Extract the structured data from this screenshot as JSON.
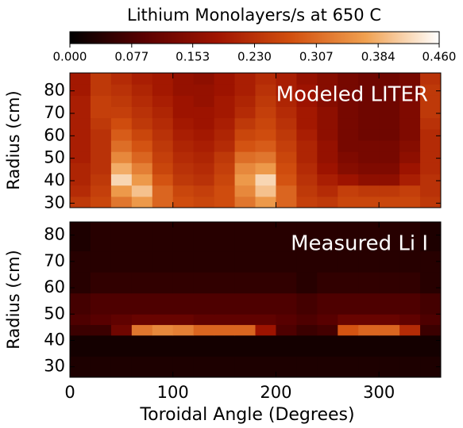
{
  "chart_data": [
    {
      "type": "heatmap",
      "title": "Lithium Monolayers/s at 650 C",
      "annotation": "Modeled LITER",
      "ylabel": "Radius (cm)",
      "colorbar": {
        "lim": [
          0,
          0.46
        ],
        "ticks": [
          {
            "value": 0,
            "label": "0.000"
          },
          0.077,
          0.153,
          {
            "value": 0.23,
            "label": "0.230"
          },
          0.307,
          0.384,
          {
            "value": 0.46,
            "label": "0.460"
          }
        ],
        "colors": [
          "#000000",
          "#5a0000",
          "#a01400",
          "#d2500f",
          "#f0a050",
          "#ffffff"
        ]
      },
      "xlim": [
        0,
        360
      ],
      "xbins": [
        0,
        20,
        40,
        60,
        80,
        100,
        120,
        140,
        160,
        180,
        200,
        220,
        240,
        260,
        280,
        300,
        320,
        340,
        360
      ],
      "ylim": [
        28,
        88
      ],
      "ybins": [
        28,
        33,
        38,
        43,
        48,
        53,
        58,
        63,
        68,
        73,
        78,
        83,
        88
      ],
      "yticks": [
        30,
        40,
        50,
        60,
        70,
        80
      ],
      "z": [
        [
          0.24,
          0.26,
          0.32,
          0.36,
          0.3,
          0.27,
          0.26,
          0.27,
          0.32,
          0.36,
          0.3,
          0.25,
          0.24,
          0.26,
          0.26,
          0.26,
          0.26,
          0.24
        ],
        [
          0.22,
          0.25,
          0.36,
          0.4,
          0.3,
          0.26,
          0.25,
          0.27,
          0.34,
          0.4,
          0.3,
          0.24,
          0.22,
          0.25,
          0.24,
          0.24,
          0.25,
          0.23
        ],
        [
          0.21,
          0.24,
          0.42,
          0.36,
          0.28,
          0.24,
          0.23,
          0.26,
          0.36,
          0.42,
          0.28,
          0.23,
          0.2,
          0.18,
          0.16,
          0.16,
          0.2,
          0.23
        ],
        [
          0.21,
          0.23,
          0.38,
          0.33,
          0.26,
          0.23,
          0.22,
          0.25,
          0.34,
          0.36,
          0.27,
          0.22,
          0.18,
          0.15,
          0.14,
          0.14,
          0.18,
          0.22
        ],
        [
          0.2,
          0.23,
          0.34,
          0.3,
          0.25,
          0.22,
          0.21,
          0.24,
          0.31,
          0.32,
          0.26,
          0.21,
          0.17,
          0.14,
          0.13,
          0.13,
          0.16,
          0.22
        ],
        [
          0.2,
          0.23,
          0.31,
          0.28,
          0.24,
          0.21,
          0.2,
          0.22,
          0.28,
          0.29,
          0.25,
          0.21,
          0.17,
          0.13,
          0.13,
          0.13,
          0.15,
          0.22
        ],
        [
          0.2,
          0.23,
          0.29,
          0.26,
          0.23,
          0.2,
          0.19,
          0.21,
          0.26,
          0.27,
          0.24,
          0.2,
          0.16,
          0.13,
          0.12,
          0.12,
          0.14,
          0.22
        ],
        [
          0.2,
          0.24,
          0.27,
          0.24,
          0.22,
          0.19,
          0.18,
          0.2,
          0.24,
          0.26,
          0.23,
          0.19,
          0.16,
          0.13,
          0.12,
          0.12,
          0.14,
          0.23
        ],
        [
          0.2,
          0.25,
          0.25,
          0.23,
          0.21,
          0.18,
          0.18,
          0.19,
          0.22,
          0.25,
          0.22,
          0.19,
          0.16,
          0.13,
          0.12,
          0.12,
          0.14,
          0.24
        ],
        [
          0.2,
          0.25,
          0.24,
          0.22,
          0.2,
          0.18,
          0.17,
          0.19,
          0.21,
          0.24,
          0.21,
          0.18,
          0.15,
          0.13,
          0.12,
          0.12,
          0.14,
          0.24
        ],
        [
          0.19,
          0.24,
          0.23,
          0.21,
          0.19,
          0.17,
          0.17,
          0.18,
          0.2,
          0.23,
          0.2,
          0.18,
          0.15,
          0.13,
          0.12,
          0.12,
          0.13,
          0.24
        ],
        [
          0.19,
          0.24,
          0.22,
          0.2,
          0.19,
          0.17,
          0.16,
          0.18,
          0.2,
          0.22,
          0.2,
          0.17,
          0.15,
          0.13,
          0.12,
          0.12,
          0.13,
          0.23
        ]
      ]
    },
    {
      "type": "heatmap",
      "annotation": "Measured Li I",
      "ylabel": "Radius (cm)",
      "xlabel": "Toroidal Angle (Degrees)",
      "xlim": [
        0,
        360
      ],
      "xticks": [
        0,
        100,
        200,
        300
      ],
      "xbins": [
        0,
        20,
        40,
        60,
        80,
        100,
        120,
        140,
        160,
        180,
        200,
        220,
        240,
        260,
        280,
        300,
        320,
        340,
        360
      ],
      "ylim": [
        26,
        85
      ],
      "ybins": [
        26,
        34,
        42,
        46,
        50,
        58,
        66,
        74,
        85
      ],
      "yticks": [
        30,
        40,
        50,
        60,
        70,
        80
      ],
      "z": [
        [
          0.03,
          0.03,
          0.03,
          0.03,
          0.03,
          0.03,
          0.03,
          0.03,
          0.03,
          0.03,
          0.03,
          0.03,
          0.03,
          0.03,
          0.03,
          0.03,
          0.03,
          0.03
        ],
        [
          0.02,
          0.02,
          0.02,
          0.02,
          0.02,
          0.02,
          0.02,
          0.02,
          0.02,
          0.02,
          0.02,
          0.02,
          0.02,
          0.02,
          0.02,
          0.02,
          0.02,
          0.02
        ],
        [
          0.06,
          0.06,
          0.12,
          0.32,
          0.34,
          0.33,
          0.3,
          0.3,
          0.3,
          0.18,
          0.08,
          0.06,
          0.07,
          0.28,
          0.3,
          0.3,
          0.22,
          0.06
        ],
        [
          0.08,
          0.09,
          0.1,
          0.11,
          0.11,
          0.11,
          0.1,
          0.1,
          0.1,
          0.1,
          0.09,
          0.08,
          0.09,
          0.11,
          0.11,
          0.11,
          0.1,
          0.08
        ],
        [
          0.07,
          0.08,
          0.08,
          0.08,
          0.08,
          0.08,
          0.08,
          0.08,
          0.08,
          0.08,
          0.08,
          0.07,
          0.08,
          0.08,
          0.08,
          0.08,
          0.08,
          0.07
        ],
        [
          0.04,
          0.05,
          0.05,
          0.05,
          0.05,
          0.05,
          0.05,
          0.05,
          0.05,
          0.05,
          0.05,
          0.04,
          0.05,
          0.05,
          0.05,
          0.05,
          0.05,
          0.04
        ],
        [
          0.04,
          0.04,
          0.04,
          0.04,
          0.04,
          0.04,
          0.04,
          0.04,
          0.04,
          0.04,
          0.04,
          0.04,
          0.04,
          0.04,
          0.04,
          0.04,
          0.04,
          0.04
        ],
        [
          0.03,
          0.04,
          0.04,
          0.04,
          0.04,
          0.04,
          0.04,
          0.04,
          0.04,
          0.04,
          0.04,
          0.04,
          0.04,
          0.04,
          0.04,
          0.04,
          0.04,
          0.03
        ]
      ]
    }
  ]
}
